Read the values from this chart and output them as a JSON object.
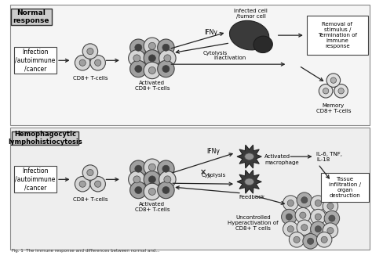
{
  "bg_color": "#ffffff",
  "normal_label": "Normal\nresponse",
  "hlh_label": "Hemophagocytic\nlymphohistiocytosis",
  "infection_label": "Infection\n/autoimmune\n/cancer",
  "cd8_label": "CD8+ T-cells",
  "activated_cd8_label": "Activated\nCD8+ T-cells",
  "ifny_label": "IFNγ",
  "cytolysis_label": "Cytolysis",
  "inactivation_label": "Inactivation",
  "infected_label": "Infected cell\n/tumor cell",
  "removal_label": "Removal of\nstimulus /\nTermination of\nimmune\nresponse",
  "memory_label": "Memory\nCD8+ T-cells",
  "activated_macro_label": "Activated",
  "activated_macro_label2": "macrophage",
  "il_label": "IL-6, TNF,\nIL-18",
  "tissue_label": "Tissue\ninfiltration /\norgan\ndestruction",
  "feedback_label": "Feedback",
  "uncontrolled_label": "Uncontrolled\nHyperactivation of\nCD8+ T cells",
  "caption": "Fig. 1  The immune response and differences between normal and..."
}
